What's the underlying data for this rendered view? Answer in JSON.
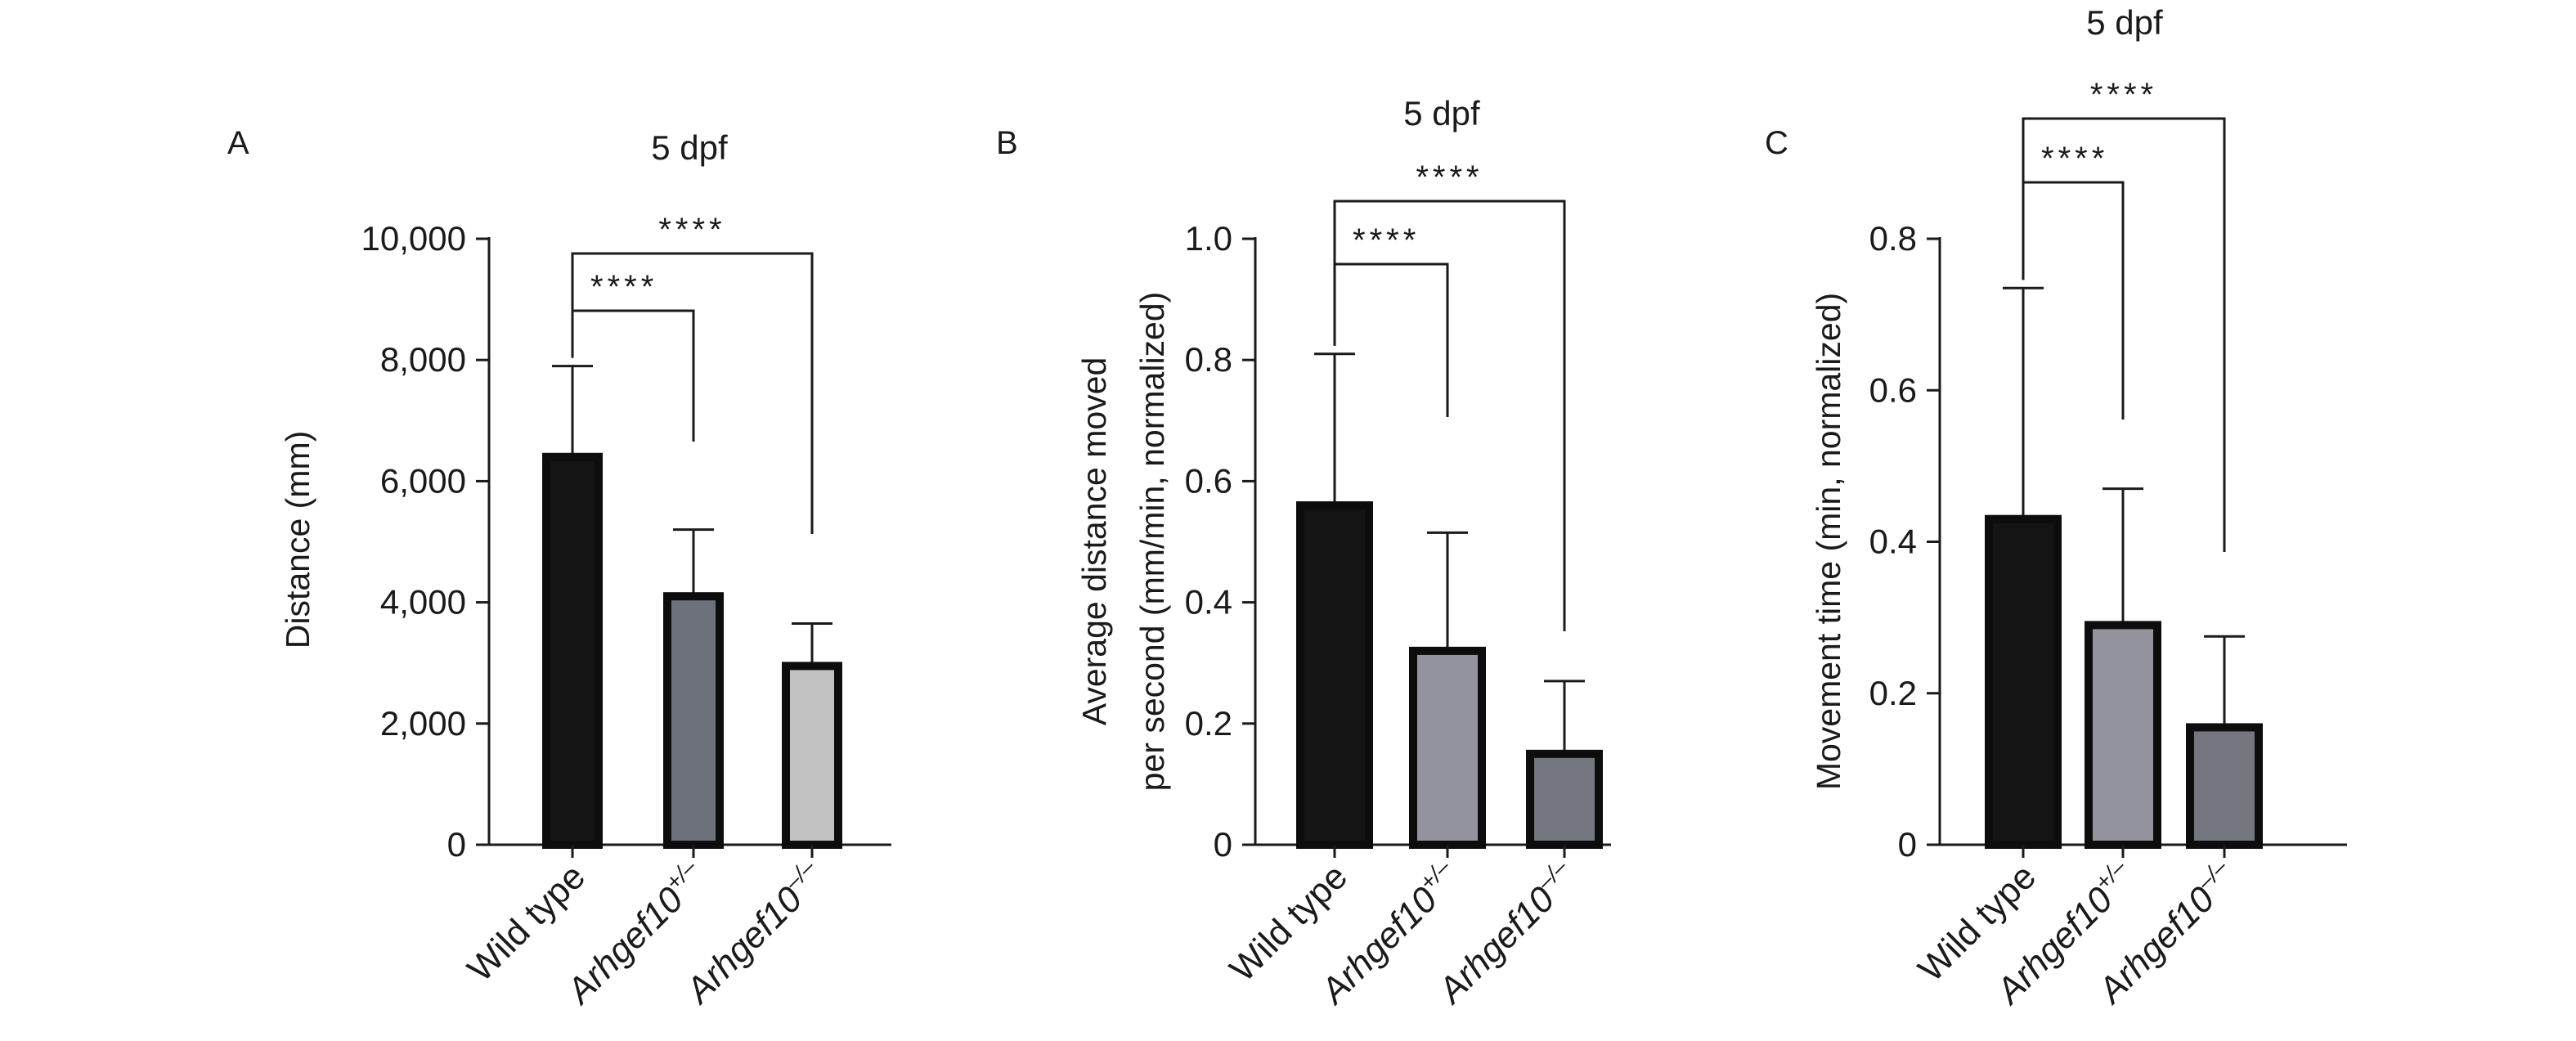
{
  "chart_data": [
    {
      "type": "bar",
      "panel_label": "A",
      "title": "5 dpf",
      "ylabel": "Distance (mm)",
      "ylim": [
        0,
        10000
      ],
      "yticks": [
        0,
        2000,
        4000,
        6000,
        8000,
        10000
      ],
      "ytick_labels": [
        "0",
        "2,000",
        "4,000",
        "6,000",
        "8,000",
        "10,000"
      ],
      "categories": [
        {
          "base": "Wild type",
          "sup": ""
        },
        {
          "base": "Arhgef10",
          "sup": "+/–"
        },
        {
          "base": "Arhgef10",
          "sup": "–/–"
        }
      ],
      "values": [
        6400,
        4100,
        2950
      ],
      "errors": [
        1500,
        1100,
        700
      ],
      "colors": [
        "#141414",
        "#6c717b",
        "#c2c2c2"
      ],
      "significance": [
        {
          "from": 0,
          "to": 1,
          "label": "****"
        },
        {
          "from": 0,
          "to": 2,
          "label": "****"
        }
      ]
    },
    {
      "type": "bar",
      "panel_label": "B",
      "title": "5 dpf",
      "ylabel": [
        "Average distance moved",
        "per second (mm/min, normalized)"
      ],
      "ylim": [
        0,
        1.0
      ],
      "yticks": [
        0,
        0.2,
        0.4,
        0.6,
        0.8,
        1.0
      ],
      "ytick_labels": [
        "0",
        "0.2",
        "0.4",
        "0.6",
        "0.8",
        "1.0"
      ],
      "categories": [
        {
          "base": "Wild type",
          "sup": ""
        },
        {
          "base": "Arhgef10",
          "sup": "+/–"
        },
        {
          "base": "Arhgef10",
          "sup": "–/–"
        }
      ],
      "values": [
        0.56,
        0.32,
        0.15
      ],
      "errors": [
        0.25,
        0.195,
        0.12
      ],
      "colors": [
        "#141414",
        "#92939c",
        "#747780"
      ],
      "significance": [
        {
          "from": 0,
          "to": 1,
          "label": "****"
        },
        {
          "from": 0,
          "to": 2,
          "label": "****"
        }
      ]
    },
    {
      "type": "bar",
      "panel_label": "C",
      "title": "5 dpf",
      "ylabel": "Movement time (min, normalized)",
      "ylim": [
        0,
        0.8
      ],
      "yticks": [
        0,
        0.2,
        0.4,
        0.6,
        0.8
      ],
      "ytick_labels": [
        "0",
        "0.2",
        "0.4",
        "0.6",
        "0.8"
      ],
      "categories": [
        {
          "base": "Wild type",
          "sup": ""
        },
        {
          "base": "Arhgef10",
          "sup": "+/–"
        },
        {
          "base": "Arhgef10",
          "sup": "–/–"
        }
      ],
      "values": [
        0.43,
        0.29,
        0.155
      ],
      "errors": [
        0.305,
        0.18,
        0.12
      ],
      "colors": [
        "#141414",
        "#92939c",
        "#747780"
      ],
      "significance": [
        {
          "from": 0,
          "to": 1,
          "label": "****"
        },
        {
          "from": 0,
          "to": 2,
          "label": "****"
        }
      ]
    }
  ]
}
